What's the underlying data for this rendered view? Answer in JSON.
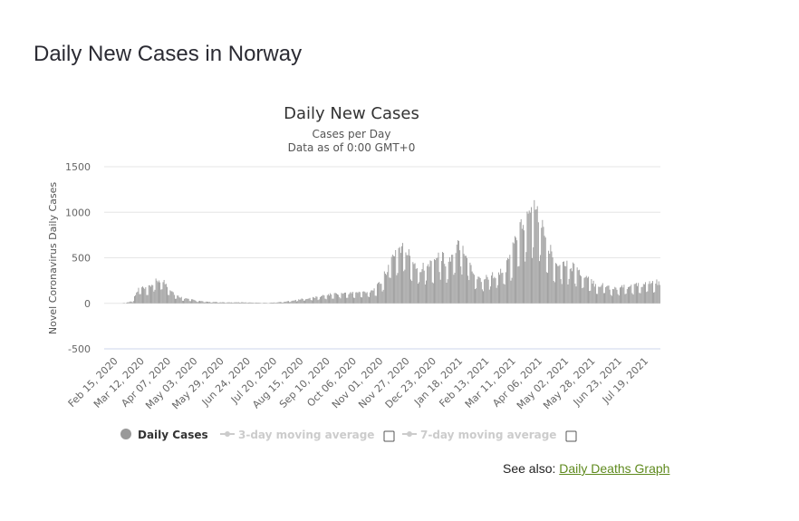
{
  "page": {
    "title": "Daily New Cases in Norway",
    "see_also_label": "See also:",
    "see_also_link": "Daily Deaths Graph"
  },
  "chart_data": {
    "type": "bar",
    "title": "Daily New Cases",
    "subtitle_line1": "Cases per Day",
    "subtitle_line2": "Data as of 0:00 GMT+0",
    "ylabel": "Novel Coronavirus Daily Cases",
    "xlabel": "",
    "ylim": [
      -500,
      1500
    ],
    "yticks": [
      1500,
      1000,
      500,
      0,
      -500
    ],
    "grid": true,
    "bar_color": "#999999",
    "start_date": "2020-02-15",
    "end_date": "2021-07-30",
    "x_tick_labels": [
      "Feb 15, 2020",
      "Mar 12, 2020",
      "Apr 07, 2020",
      "May 03, 2020",
      "May 29, 2020",
      "Jun 24, 2020",
      "Jul 20, 2020",
      "Aug 15, 2020",
      "Sep 10, 2020",
      "Oct 06, 2020",
      "Nov 01, 2020",
      "Nov 27, 2020",
      "Dec 23, 2020",
      "Jan 18, 2021",
      "Feb 13, 2021",
      "Mar 11, 2021",
      "Apr 06, 2021",
      "May 02, 2021",
      "May 28, 2021",
      "Jun 23, 2021",
      "Jul 19, 2021"
    ],
    "weekly_values": [
      0,
      5,
      25,
      180,
      150,
      230,
      270,
      190,
      90,
      60,
      45,
      30,
      20,
      15,
      12,
      10,
      10,
      12,
      10,
      8,
      6,
      5,
      10,
      15,
      25,
      40,
      50,
      60,
      70,
      90,
      100,
      110,
      110,
      115,
      120,
      130,
      160,
      250,
      450,
      600,
      620,
      500,
      400,
      400,
      450,
      550,
      450,
      520,
      700,
      500,
      300,
      260,
      300,
      320,
      350,
      500,
      800,
      900,
      1050,
      950,
      650,
      500,
      450,
      430,
      400,
      300,
      250,
      200,
      200,
      170,
      170,
      180,
      190,
      200,
      210,
      230
    ],
    "legend": {
      "daily_cases": "Daily Cases",
      "ma3": "3-day moving average",
      "ma7": "7-day moving average"
    }
  }
}
